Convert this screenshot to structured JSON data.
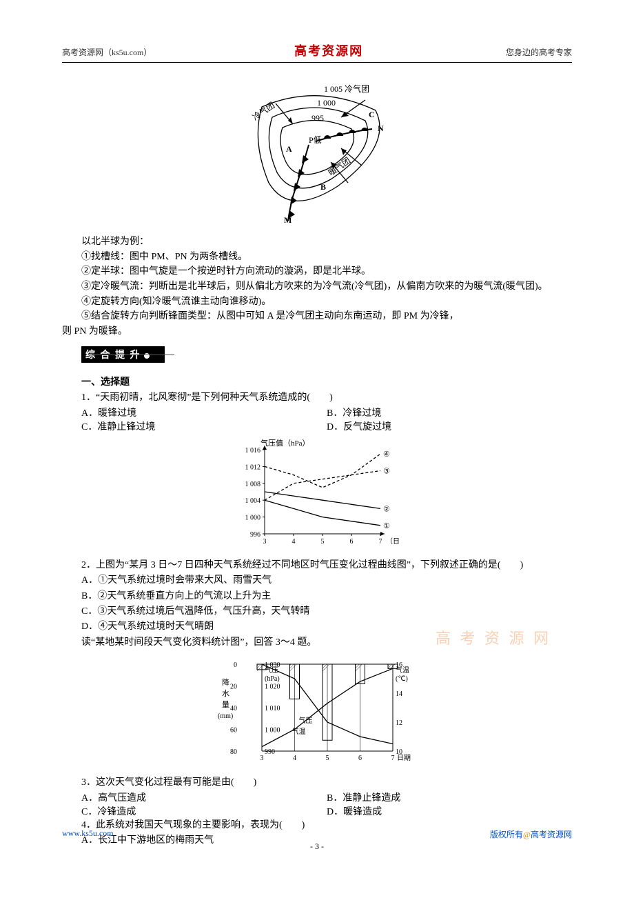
{
  "header": {
    "left": "高考资源网（ks5u.com）",
    "center": "高考资源网",
    "right": "您身边的高考专家"
  },
  "cyclone_diagram": {
    "labels": {
      "isobar_outer": "1 005 冷气团",
      "isobar_mid": "1 000",
      "isobar_inner": "995",
      "low_center": "P低",
      "cold_label": "冷气团",
      "warm_label": "暖气团",
      "A": "A",
      "B": "B",
      "C": "C",
      "M": "M",
      "N": "N"
    },
    "colors": {
      "stroke": "#000000",
      "fill_front": "#000000",
      "bg": "#ffffff"
    }
  },
  "explain": {
    "lead": "以北半球为例：",
    "p1": "①找槽线：图中 PM、PN 为两条槽线。",
    "p2": "②定半球：图中气旋是一个按逆时针方向流动的漩涡，即是北半球。",
    "p3": "③定冷暖气流：判断出是北半球后，则从偏北方吹来的为冷气流(冷气团)，从偏南方吹来的为暖气流(暖气团)。",
    "p4": "④定旋转方向(知冷暖气流谁主动向谁移动)。",
    "p5a": "⑤结合旋转方向判断锋面类型：从图中可知 A 是冷气团主动向东南运动，即 PM 为冷锋，",
    "p5b": "则 PN 为暖锋。"
  },
  "section_badge": "综 合 提 升",
  "part_title": "一、选择题",
  "q1": {
    "stem": "1．“天雨初晴，北风寒彻”是下列何种天气系统造成的(　　)",
    "A": "A．暖锋过境",
    "B": "B．冷锋过境",
    "C": "C．准静止锋过境",
    "D": "D．反气旋过境"
  },
  "pressure_chart": {
    "title": "气压值（hPa）",
    "x_label": "（日）",
    "y_ticks": [
      996,
      1000,
      1004,
      1008,
      1012,
      1016
    ],
    "x_ticks": [
      3,
      4,
      5,
      6,
      7
    ],
    "series_labels": {
      "s1": "①",
      "s2": "②",
      "s3": "③",
      "s4": "④"
    },
    "colors": {
      "axis": "#000000",
      "line": "#000000",
      "dash": "#000000",
      "bg": "#ffffff"
    },
    "series": {
      "s1": [
        [
          3,
          1004
        ],
        [
          4,
          1002
        ],
        [
          5,
          1000
        ],
        [
          6,
          999
        ],
        [
          7,
          998
        ]
      ],
      "s2": [
        [
          3,
          1006
        ],
        [
          4,
          1005
        ],
        [
          5,
          1004
        ],
        [
          6,
          1003
        ],
        [
          7,
          1002
        ]
      ],
      "s3": [
        [
          3,
          1004
        ],
        [
          4,
          1008
        ],
        [
          5,
          1009
        ],
        [
          6,
          1010
        ],
        [
          7,
          1011
        ]
      ],
      "s4": [
        [
          3,
          1012
        ],
        [
          4,
          1010
        ],
        [
          5,
          1007
        ],
        [
          6,
          1010
        ],
        [
          7,
          1015
        ]
      ]
    }
  },
  "q2": {
    "stem": "2．上图为“某月 3 日～7 日四种天气系统经过不同地区时气压变化过程曲线图”，下列叙述正确的是(　　)",
    "A": "A．①天气系统过境时会带来大风、雨雪天气",
    "B": "B．②天气系统垂直方向上的气流以上升为主",
    "C": "C．③天气系统过境后气温降低，气压升高，天气转晴",
    "D": "D．④天气系统过境时天气晴朗"
  },
  "q34_lead": "读“某地某时间段天气变化资料统计图”，回答 3～4 题。",
  "weather_chart": {
    "left_title_a": "降",
    "left_title_b": "水",
    "left_title_c": "量",
    "left_unit": "(mm)",
    "left_ticks": [
      0,
      20,
      40,
      60,
      80
    ],
    "pressure_label": "气压",
    "pressure_unit": "(hPa)",
    "pressure_ticks": [
      990,
      1000,
      1010,
      1020,
      1030
    ],
    "temp_label": "气温",
    "temp_unit": "(℃)",
    "temp_ticks": [
      10,
      12,
      14,
      16
    ],
    "x_ticks": [
      3,
      4,
      5,
      6,
      7
    ],
    "x_label": "日期",
    "curve_labels": {
      "pressure": "气压",
      "temp": "气温"
    },
    "colors": {
      "axis": "#000000",
      "bar": "#000000",
      "line": "#000000",
      "bg": "#ffffff"
    }
  },
  "q3": {
    "stem": "3．这次天气变化过程最有可能是由(　　)",
    "A": "A．高气压造成",
    "B": "B．准静止锋造成",
    "C": "C．冷锋造成",
    "D": "D．暖锋造成"
  },
  "q4": {
    "stem": "4．此系统对我国天气现象的主要影响，表现为(　　)",
    "A": "A．长江中下游地区的梅雨天气"
  },
  "watermark": "高 考 资 源 网",
  "footer": {
    "url": "www.ks5u.com",
    "copy_prefix": "版权所有",
    "copy_at": "@",
    "copy_site": "高考资源网",
    "page": "- 3 -"
  }
}
